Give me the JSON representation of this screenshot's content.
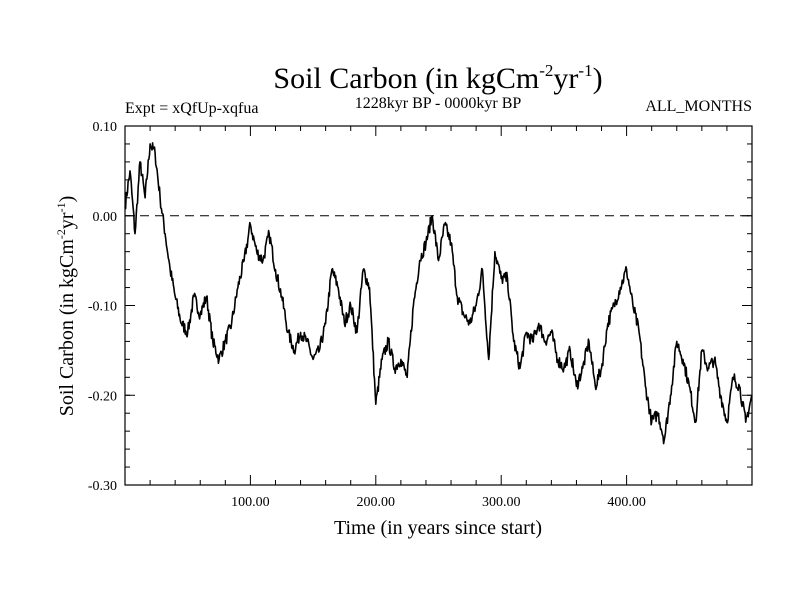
{
  "chart_data": {
    "type": "line",
    "title_main": "Soil Carbon (in kgCm",
    "title_unit_exp1": "-2",
    "title_unit_mid": "yr",
    "title_unit_exp2": "-1",
    "title_close": ")",
    "expt": "Expt = xQfUp-xqfua",
    "period": "1228kyr BP - 0000kyr BP",
    "months": "ALL_MONTHS",
    "xlabel": "Time (in years since start)",
    "ylabel_main": "Soil Carbon (in kgCm",
    "ylabel_exp1": "-2",
    "ylabel_mid": "yr",
    "ylabel_exp2": "-1",
    "ylabel_close": ")",
    "xlim": [
      0,
      500
    ],
    "ylim": [
      -0.3,
      0.1
    ],
    "x_ticks": [
      100,
      200,
      300,
      400
    ],
    "x_tick_labels": [
      "100.00",
      "200.00",
      "300.00",
      "400.00"
    ],
    "y_ticks": [
      0.1,
      0.0,
      -0.1,
      -0.2,
      -0.3
    ],
    "y_tick_labels": [
      "0.10",
      "0.00",
      "-0.10",
      "-0.20",
      "-0.30"
    ],
    "reference_line": {
      "y": 0.0,
      "style": "dashed"
    },
    "line_color": "#000000",
    "series": [
      {
        "name": "Soil Carbon",
        "x": [
          0,
          4,
          8,
          12,
          16,
          20,
          24,
          28,
          32,
          36,
          40,
          45,
          50,
          55,
          60,
          65,
          70,
          75,
          80,
          85,
          90,
          95,
          100,
          105,
          110,
          115,
          120,
          125,
          130,
          135,
          140,
          145,
          150,
          155,
          160,
          165,
          170,
          175,
          180,
          185,
          190,
          195,
          200,
          205,
          210,
          215,
          220,
          225,
          230,
          235,
          240,
          245,
          250,
          255,
          260,
          265,
          270,
          275,
          280,
          285,
          290,
          295,
          300,
          305,
          310,
          315,
          320,
          325,
          330,
          335,
          340,
          345,
          350,
          355,
          360,
          365,
          370,
          375,
          380,
          385,
          390,
          395,
          400,
          405,
          410,
          415,
          420,
          425,
          430,
          435,
          440,
          445,
          450,
          455,
          460,
          465,
          470,
          475,
          480,
          485,
          490,
          495,
          500
        ],
        "y": [
          0.01,
          0.05,
          -0.02,
          0.06,
          0.02,
          0.08,
          0.07,
          0.02,
          -0.02,
          -0.06,
          -0.09,
          -0.12,
          -0.13,
          -0.09,
          -0.11,
          -0.09,
          -0.14,
          -0.16,
          -0.14,
          -0.12,
          -0.08,
          -0.05,
          -0.01,
          -0.04,
          -0.05,
          -0.02,
          -0.06,
          -0.09,
          -0.13,
          -0.15,
          -0.13,
          -0.14,
          -0.16,
          -0.15,
          -0.12,
          -0.06,
          -0.08,
          -0.12,
          -0.1,
          -0.13,
          -0.06,
          -0.08,
          -0.21,
          -0.16,
          -0.14,
          -0.17,
          -0.16,
          -0.18,
          -0.1,
          -0.05,
          -0.03,
          0.0,
          -0.05,
          -0.01,
          -0.03,
          -0.09,
          -0.11,
          -0.12,
          -0.1,
          -0.06,
          -0.16,
          -0.04,
          -0.07,
          -0.07,
          -0.14,
          -0.17,
          -0.13,
          -0.14,
          -0.12,
          -0.14,
          -0.13,
          -0.16,
          -0.17,
          -0.15,
          -0.19,
          -0.17,
          -0.14,
          -0.19,
          -0.17,
          -0.12,
          -0.1,
          -0.08,
          -0.06,
          -0.1,
          -0.13,
          -0.19,
          -0.23,
          -0.22,
          -0.25,
          -0.2,
          -0.14,
          -0.16,
          -0.19,
          -0.23,
          -0.15,
          -0.17,
          -0.16,
          -0.2,
          -0.23,
          -0.18,
          -0.19,
          -0.23,
          -0.2
        ]
      }
    ]
  }
}
